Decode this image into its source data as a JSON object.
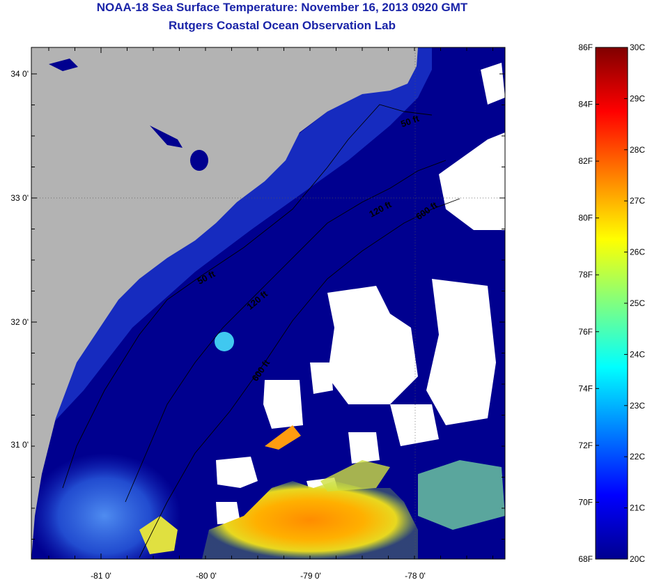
{
  "title": "NOAA-18 Sea Surface Temperature:  November 16, 2013 0920 GMT",
  "subtitle": "Rutgers Coastal Ocean Observation Lab",
  "map": {
    "lat_ticks": [
      "34 0'",
      "33 0'",
      "32 0'",
      "31 0'"
    ],
    "lon_ticks": [
      "-81 0'",
      "-80 0'",
      "-79 0'",
      "-78 0'"
    ],
    "contours": [
      {
        "label": "50 ft",
        "depth": 50
      },
      {
        "label": "120 ft",
        "depth": 120
      },
      {
        "label": "600 ft",
        "depth": 600
      }
    ],
    "contour_labels": [
      "50 ft",
      "50 ft",
      "120 ft",
      "120 ft",
      "600 ft",
      "600 ft"
    ],
    "colors": {
      "land": "#b3b3b3",
      "cloud": "#ffffff",
      "ocean_cold": "#00008f",
      "shelf": "#1a33c8"
    }
  },
  "colorbar": {
    "fahrenheit": [
      "86F",
      "84F",
      "82F",
      "80F",
      "78F",
      "76F",
      "74F",
      "72F",
      "70F",
      "68F"
    ],
    "celsius": [
      "30C",
      "29C",
      "28C",
      "27C",
      "26C",
      "25C",
      "24C",
      "23C",
      "22C",
      "21C",
      "20C"
    ],
    "colormap": "jet"
  }
}
